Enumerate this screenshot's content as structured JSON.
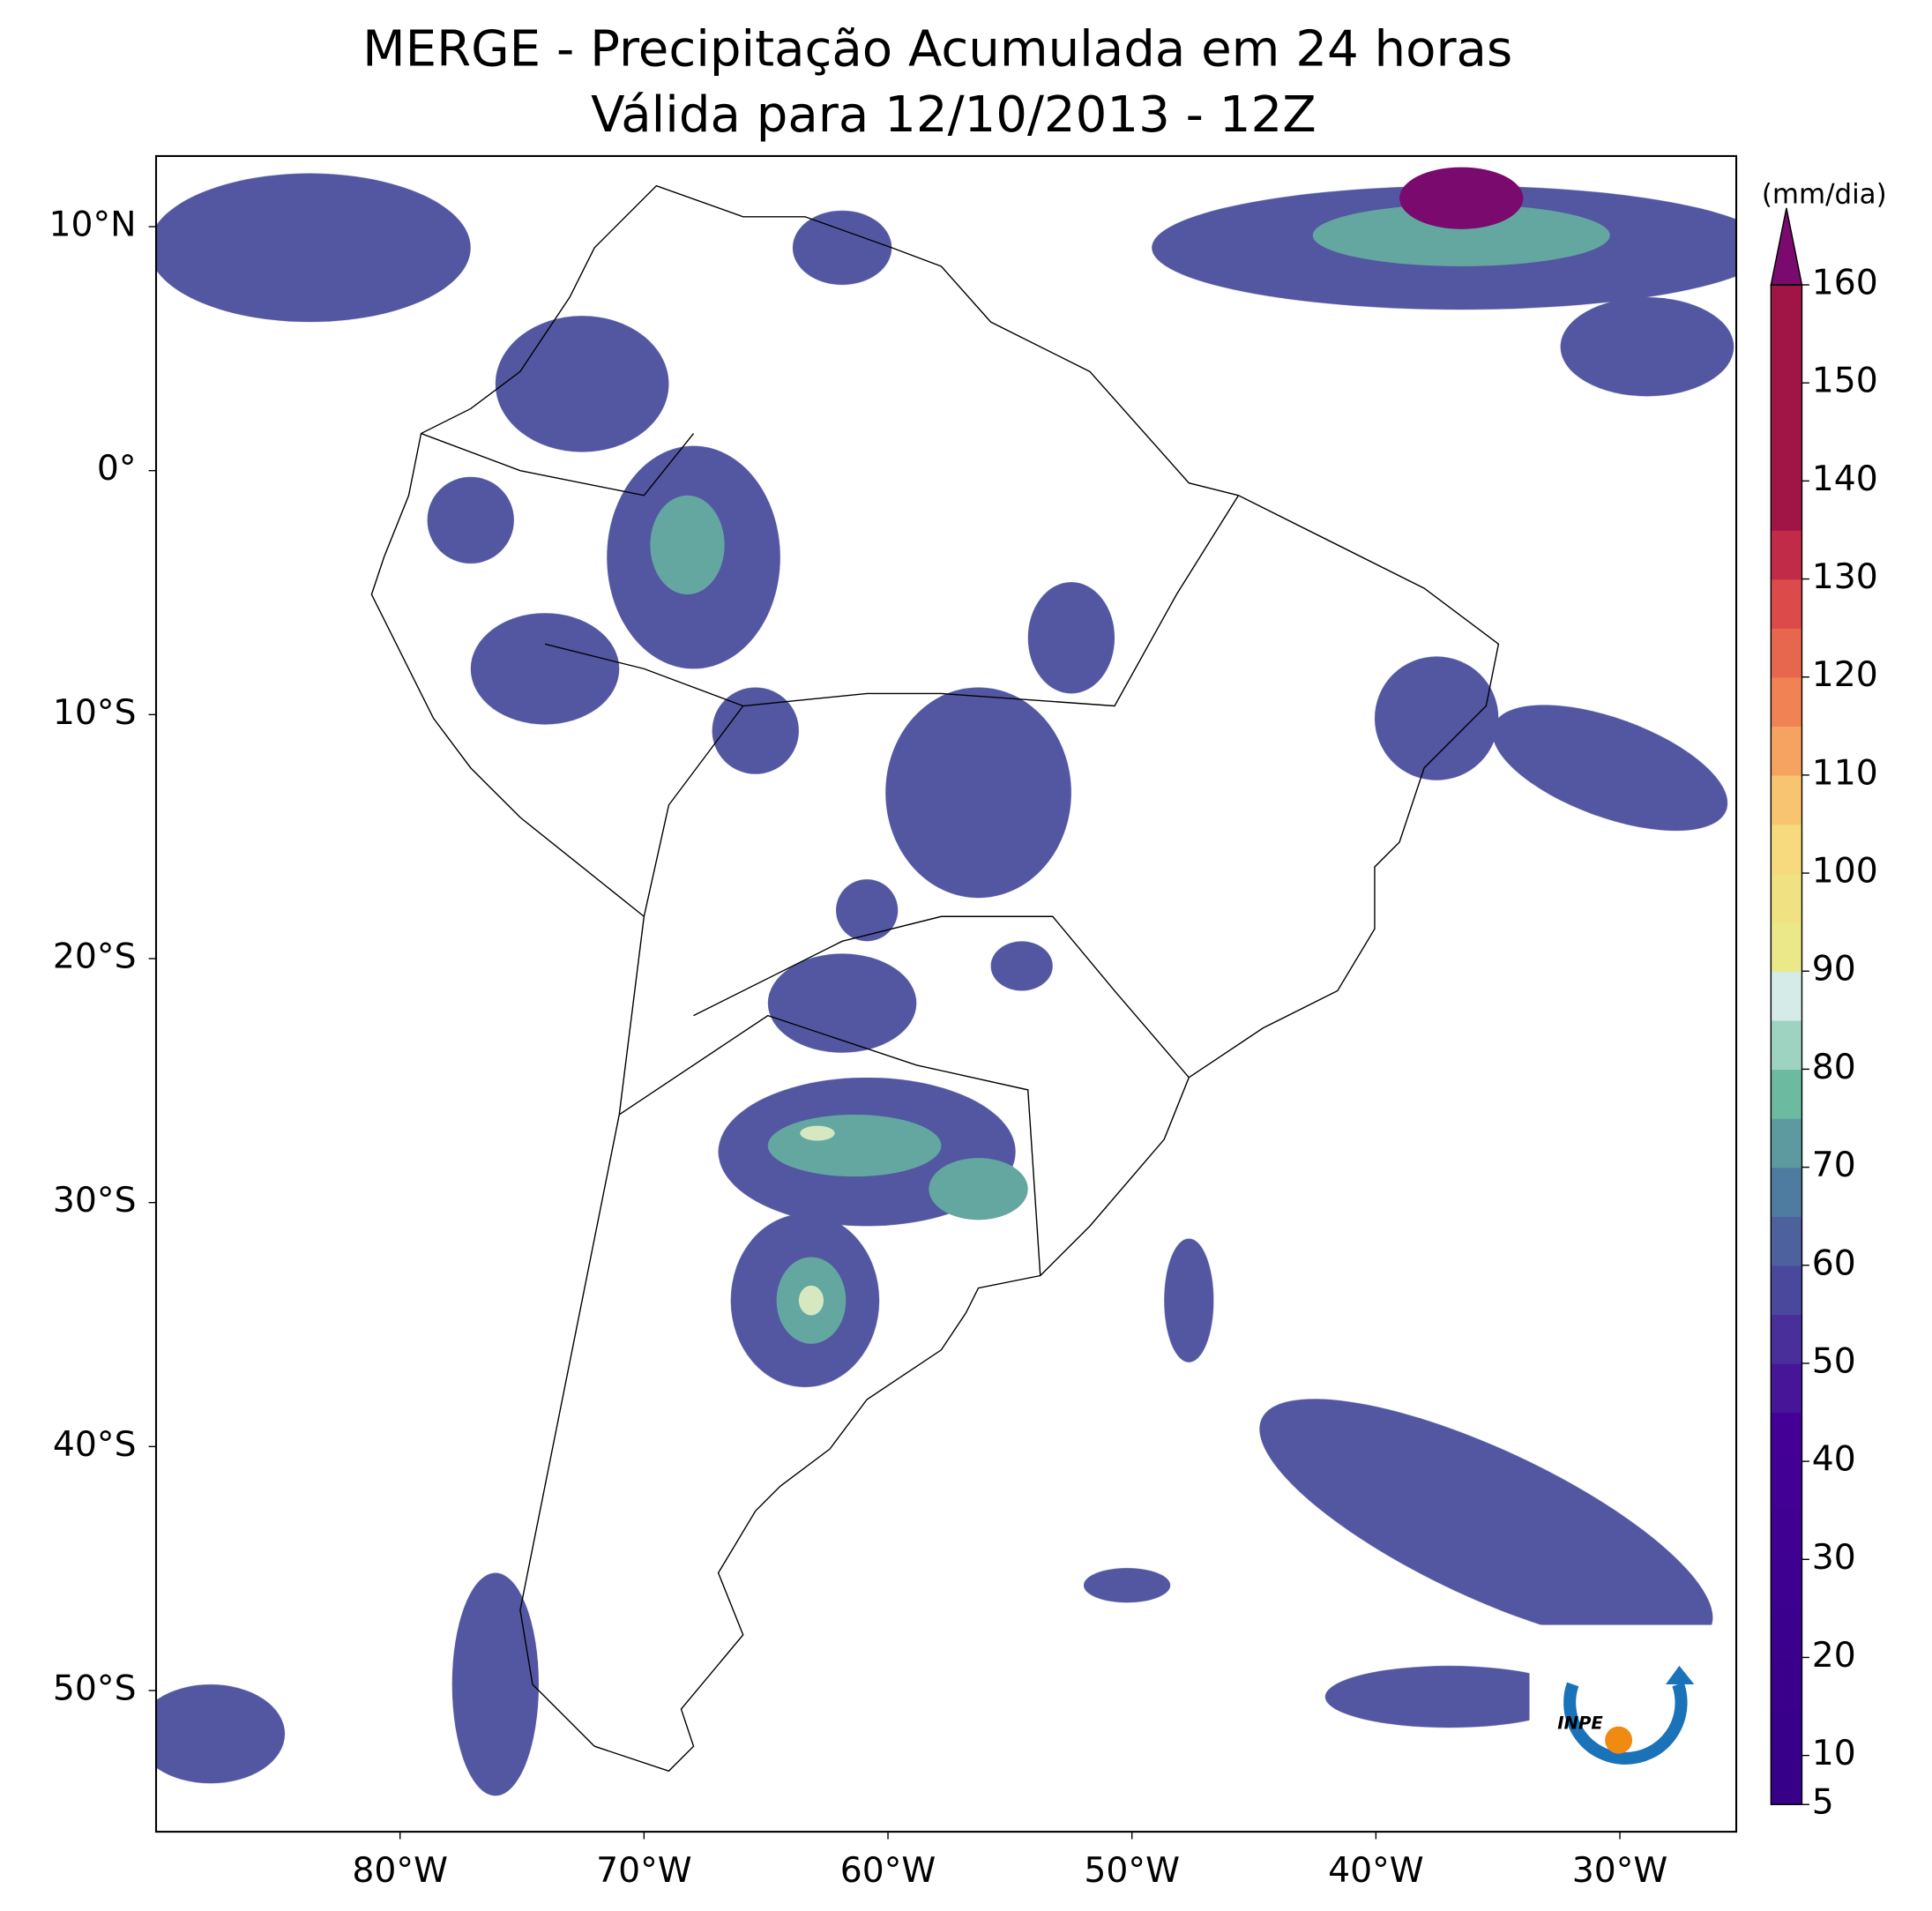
{
  "title": [
    "MERGE - Precipitação Acumulada em 24 horas",
    "Válida para 12/10/2013 - 12Z"
  ],
  "map": {
    "lat_labels": [
      "10°N",
      "0°",
      "10°S",
      "20°S",
      "30°S",
      "40°S",
      "50°S"
    ],
    "lon_labels": [
      "80°W",
      "70°W",
      "60°W",
      "50°W",
      "40°W",
      "30°W"
    ]
  },
  "colorbar": {
    "label": "(mm/dia)",
    "range": [
      5,
      160
    ],
    "extend": "max",
    "ticks": [
      5,
      10,
      20,
      30,
      40,
      50,
      60,
      70,
      80,
      90,
      100,
      110,
      120,
      130,
      140,
      150,
      160
    ]
  },
  "logo": {
    "text": "INPE"
  }
}
